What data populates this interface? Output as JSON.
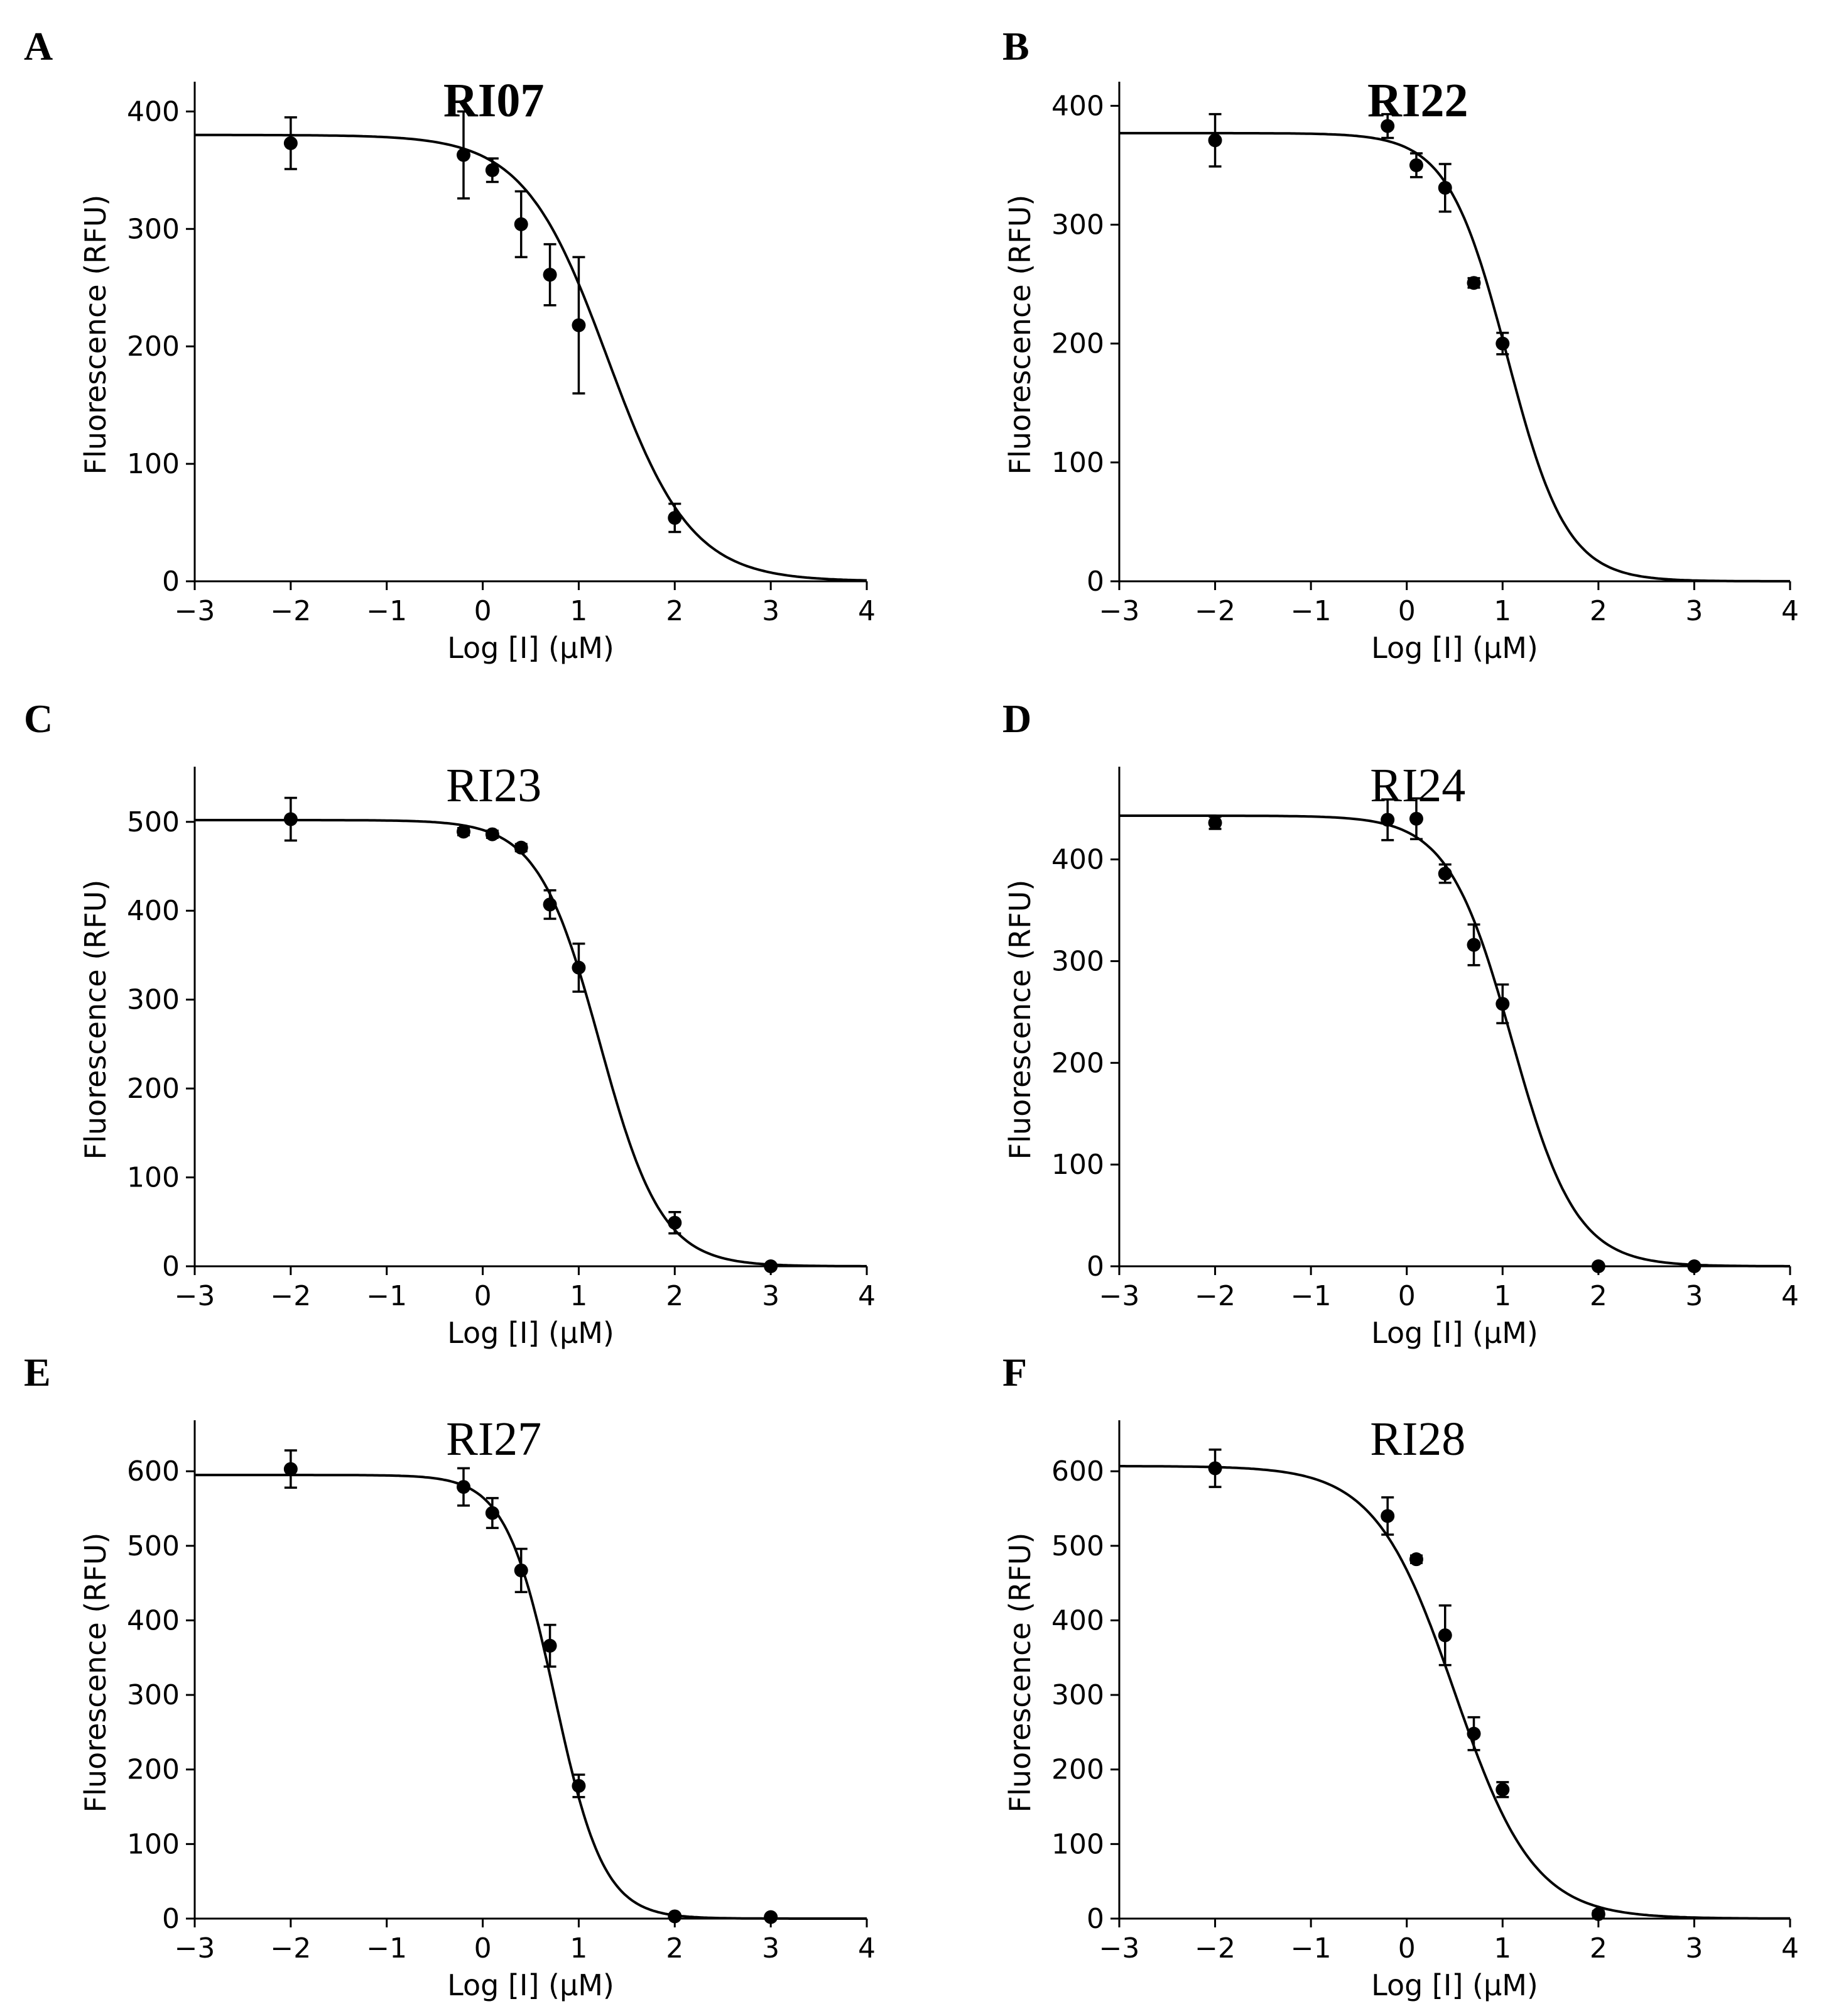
{
  "chart_data": [
    {
      "type": "scatter",
      "panel": "A",
      "title": "RI07",
      "title_bold": true,
      "xlabel": "Log [I] (μM)",
      "ylabel": "Fluorescence (RFU)",
      "xlim": [
        -3,
        4
      ],
      "ylim": [
        0,
        420
      ],
      "xticks": [
        -3,
        -2,
        -1,
        0,
        1,
        2,
        3,
        4
      ],
      "xtick_labels": [
        "−3",
        "−2",
        "−1",
        "0",
        "1",
        "2",
        "3",
        "4"
      ],
      "yticks": [
        0,
        100,
        200,
        300,
        400
      ],
      "ytick_labels": [
        "0",
        "100",
        "200",
        "300",
        "400"
      ],
      "points": [
        {
          "x": -2.0,
          "y": 373,
          "err": 22
        },
        {
          "x": -0.2,
          "y": 363,
          "err": 37
        },
        {
          "x": 0.1,
          "y": 350,
          "err": 10
        },
        {
          "x": 0.4,
          "y": 304,
          "err": 28
        },
        {
          "x": 0.7,
          "y": 261,
          "err": 26
        },
        {
          "x": 1.0,
          "y": 218,
          "err": 58
        },
        {
          "x": 2.0,
          "y": 54,
          "err": 12
        }
      ],
      "fit": {
        "top": 380,
        "bottom": 0,
        "logIC50": 1.3,
        "hill": 1.0
      }
    },
    {
      "type": "scatter",
      "panel": "B",
      "title": "RI22",
      "title_bold": true,
      "xlabel": "Log [I] (μM)",
      "ylabel": "Fluorescence (RFU)",
      "xlim": [
        -3,
        4
      ],
      "ylim": [
        0,
        415
      ],
      "xticks": [
        -3,
        -2,
        -1,
        0,
        1,
        2,
        3,
        4
      ],
      "xtick_labels": [
        "−3",
        "−2",
        "−1",
        "0",
        "1",
        "2",
        "3",
        "4"
      ],
      "yticks": [
        0,
        100,
        200,
        300,
        400
      ],
      "ytick_labels": [
        "0",
        "100",
        "200",
        "300",
        "400"
      ],
      "points": [
        {
          "x": -2.0,
          "y": 371,
          "err": 22
        },
        {
          "x": -0.2,
          "y": 383,
          "err": 10
        },
        {
          "x": 0.1,
          "y": 350,
          "err": 10
        },
        {
          "x": 0.4,
          "y": 331,
          "err": 20
        },
        {
          "x": 0.7,
          "y": 251,
          "err": 4
        },
        {
          "x": 1.0,
          "y": 200,
          "err": 9
        }
      ],
      "fit": {
        "top": 377,
        "bottom": 0,
        "logIC50": 1.05,
        "hill": 1.4
      }
    },
    {
      "type": "scatter",
      "panel": "C",
      "title": "RI23",
      "title_bold": false,
      "xlabel": "Log [I] (μM)",
      "ylabel": "Fluorescence (RFU)",
      "xlim": [
        -3,
        4
      ],
      "ylim": [
        0,
        555
      ],
      "xticks": [
        -3,
        -2,
        -1,
        0,
        1,
        2,
        3,
        4
      ],
      "xtick_labels": [
        "−3",
        "−2",
        "−1",
        "0",
        "1",
        "2",
        "3",
        "4"
      ],
      "yticks": [
        0,
        100,
        200,
        300,
        400,
        500
      ],
      "ytick_labels": [
        "0",
        "100",
        "200",
        "300",
        "400",
        "500"
      ],
      "points": [
        {
          "x": -2.0,
          "y": 503,
          "err": 24
        },
        {
          "x": -0.2,
          "y": 489,
          "err": 4
        },
        {
          "x": 0.1,
          "y": 486,
          "err": 4
        },
        {
          "x": 0.4,
          "y": 471,
          "err": 4
        },
        {
          "x": 0.7,
          "y": 407,
          "err": 16
        },
        {
          "x": 1.0,
          "y": 336,
          "err": 27
        },
        {
          "x": 2.0,
          "y": 49,
          "err": 12
        },
        {
          "x": 3.0,
          "y": 0,
          "err": 0
        }
      ],
      "fit": {
        "top": 502,
        "bottom": 0,
        "logIC50": 1.22,
        "hill": 1.35
      }
    },
    {
      "type": "scatter",
      "panel": "D",
      "title": "RI24",
      "title_bold": false,
      "xlabel": "Log [I] (μM)",
      "ylabel": "Fluorescence (RFU)",
      "xlim": [
        -3,
        4
      ],
      "ylim": [
        0,
        485
      ],
      "xticks": [
        -3,
        -2,
        -1,
        0,
        1,
        2,
        3,
        4
      ],
      "xtick_labels": [
        "−3",
        "−2",
        "−1",
        "0",
        "1",
        "2",
        "3",
        "4"
      ],
      "yticks": [
        0,
        100,
        200,
        300,
        400
      ],
      "ytick_labels": [
        "0",
        "100",
        "200",
        "300",
        "400"
      ],
      "points": [
        {
          "x": -2.0,
          "y": 436,
          "err": 6
        },
        {
          "x": -0.2,
          "y": 439,
          "err": 20
        },
        {
          "x": 0.1,
          "y": 440,
          "err": 20
        },
        {
          "x": 0.4,
          "y": 386,
          "err": 9
        },
        {
          "x": 0.7,
          "y": 316,
          "err": 20
        },
        {
          "x": 1.0,
          "y": 258,
          "err": 19
        },
        {
          "x": 2.0,
          "y": 0,
          "err": 0
        },
        {
          "x": 3.0,
          "y": 0,
          "err": 0
        }
      ],
      "fit": {
        "top": 443,
        "bottom": 0,
        "logIC50": 1.1,
        "hill": 1.3
      }
    },
    {
      "type": "scatter",
      "panel": "E",
      "title": "RI27",
      "title_bold": false,
      "xlabel": "Log [I] (μM)",
      "ylabel": "Fluorescence (RFU)",
      "xlim": [
        -3,
        4
      ],
      "ylim": [
        0,
        660
      ],
      "xticks": [
        -3,
        -2,
        -1,
        0,
        1,
        2,
        3,
        4
      ],
      "xtick_labels": [
        "−3",
        "−2",
        "−1",
        "0",
        "1",
        "2",
        "3",
        "4"
      ],
      "yticks": [
        0,
        100,
        200,
        300,
        400,
        500,
        600
      ],
      "ytick_labels": [
        "0",
        "100",
        "200",
        "300",
        "400",
        "500",
        "600"
      ],
      "points": [
        {
          "x": -2.0,
          "y": 603,
          "err": 25
        },
        {
          "x": -0.2,
          "y": 579,
          "err": 25
        },
        {
          "x": 0.1,
          "y": 544,
          "err": 20
        },
        {
          "x": 0.4,
          "y": 467,
          "err": 29
        },
        {
          "x": 0.7,
          "y": 366,
          "err": 28
        },
        {
          "x": 1.0,
          "y": 178,
          "err": 15
        },
        {
          "x": 2.0,
          "y": 3,
          "err": 0
        },
        {
          "x": 3.0,
          "y": 2,
          "err": 0
        }
      ],
      "fit": {
        "top": 595,
        "bottom": 0,
        "logIC50": 0.75,
        "hill": 1.7
      }
    },
    {
      "type": "scatter",
      "panel": "F",
      "title": "RI28",
      "title_bold": false,
      "xlabel": "Log [I] (μM)",
      "ylabel": "Fluorescence (RFU)",
      "xlim": [
        -3,
        4
      ],
      "ylim": [
        0,
        660
      ],
      "xticks": [
        -3,
        -2,
        -1,
        0,
        1,
        2,
        3,
        4
      ],
      "xtick_labels": [
        "−3",
        "−2",
        "−1",
        "0",
        "1",
        "2",
        "3",
        "4"
      ],
      "yticks": [
        0,
        100,
        200,
        300,
        400,
        500,
        600
      ],
      "ytick_labels": [
        "0",
        "100",
        "200",
        "300",
        "400",
        "500",
        "600"
      ],
      "points": [
        {
          "x": -2.0,
          "y": 604,
          "err": 25
        },
        {
          "x": -0.2,
          "y": 540,
          "err": 25
        },
        {
          "x": 0.1,
          "y": 482,
          "err": 5
        },
        {
          "x": 0.4,
          "y": 380,
          "err": 40
        },
        {
          "x": 0.7,
          "y": 248,
          "err": 22
        },
        {
          "x": 1.0,
          "y": 173,
          "err": 10
        },
        {
          "x": 2.0,
          "y": 6,
          "err": 4
        }
      ],
      "fit": {
        "top": 607,
        "bottom": 0,
        "logIC50": 0.5,
        "hill": 1.05
      }
    }
  ]
}
